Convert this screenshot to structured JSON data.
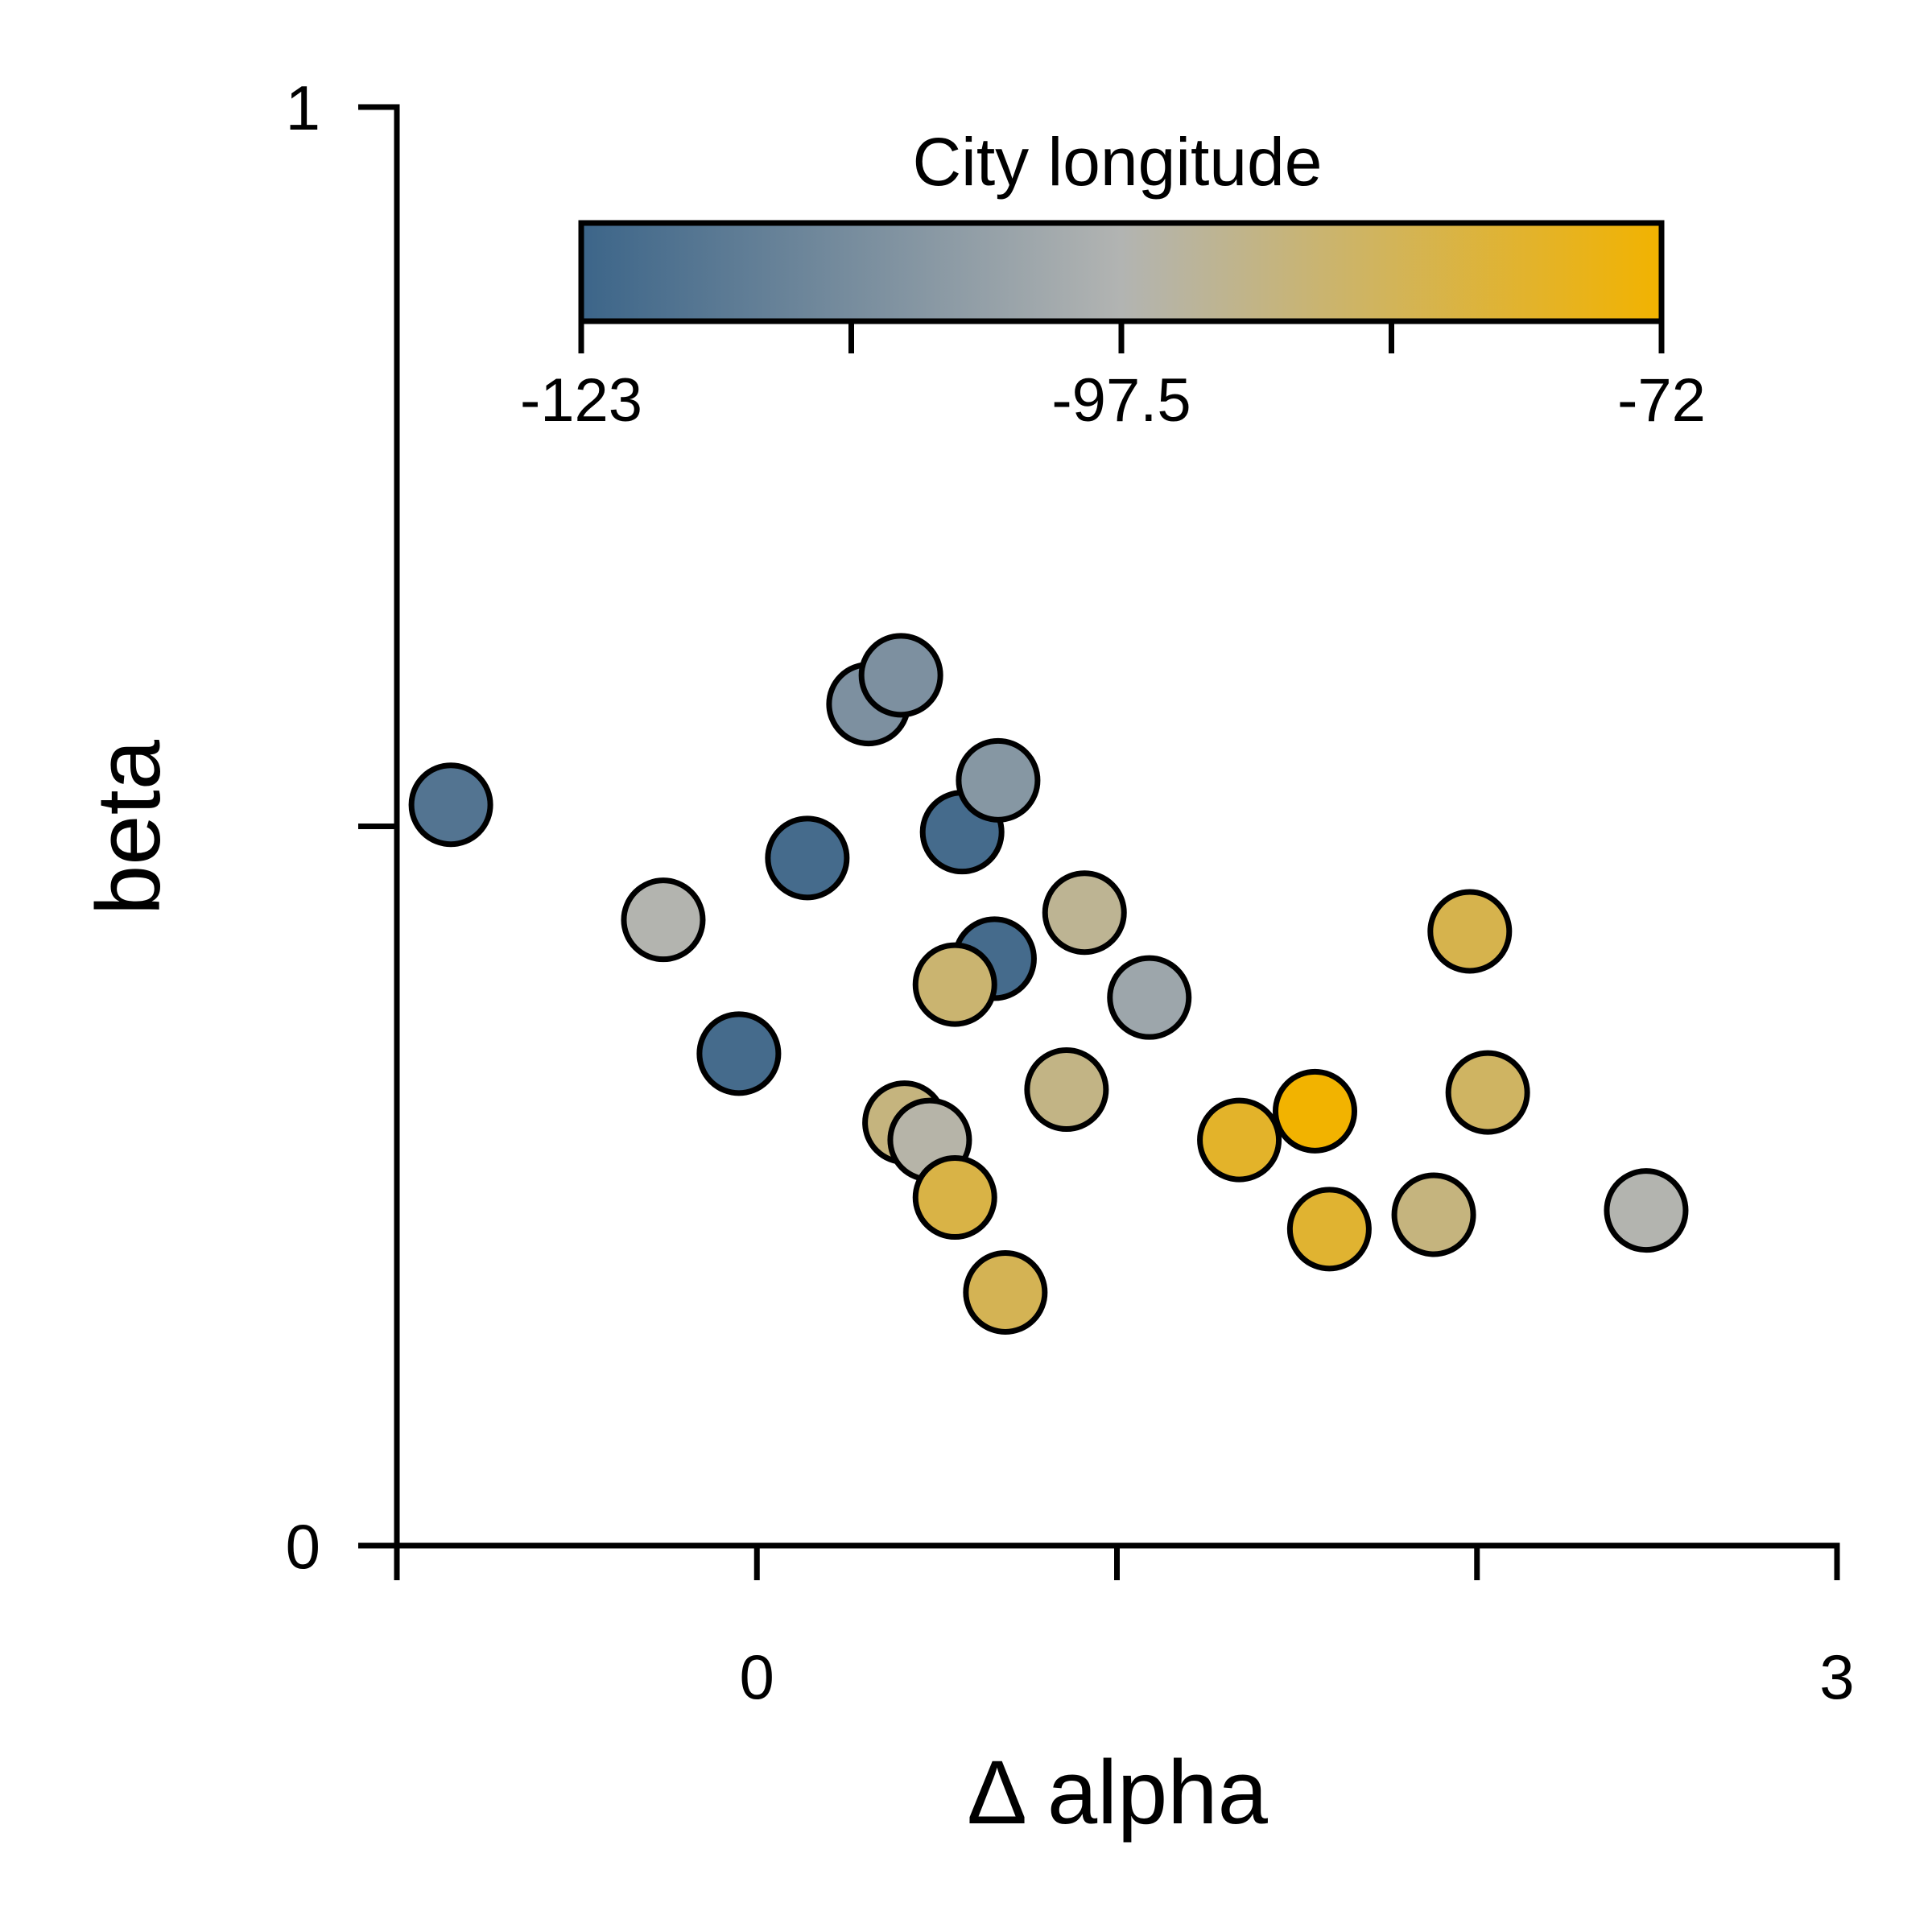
{
  "chart_data": {
    "type": "scatter",
    "xlabel": "Δ alpha",
    "ylabel": "beta",
    "xlim": [
      -1,
      3
    ],
    "ylim": [
      0,
      1
    ],
    "x_ticks": [
      -1,
      0,
      1,
      2,
      3
    ],
    "x_tick_labels": [
      "",
      "0",
      "",
      "",
      "3"
    ],
    "y_ticks": [
      0,
      0.5,
      1
    ],
    "y_tick_labels": [
      "0",
      "",
      "1"
    ],
    "grid": false,
    "colorbar": {
      "title": "City longitude",
      "min": -123,
      "max": -72,
      "ticks": [
        -123,
        -110.25,
        -97.5,
        -84.75,
        -72
      ],
      "tick_labels": [
        "-123",
        "",
        "-97.5",
        "",
        "-72"
      ],
      "colors": [
        "#3c6589",
        "#b2b4b2",
        "#f2b300"
      ],
      "placement": "top"
    },
    "series": [
      {
        "x": [
          -0.85,
          -0.26,
          -0.05,
          0.14,
          0.31,
          0.4,
          0.57,
          0.66,
          0.67,
          0.91,
          1.09,
          0.86,
          0.55,
          0.41,
          0.48,
          0.55,
          0.69,
          1.34,
          1.55,
          1.59,
          1.88,
          1.98,
          2.03,
          2.47
        ],
        "y": [
          0.515,
          0.435,
          0.342,
          0.478,
          0.585,
          0.605,
          0.496,
          0.408,
          0.532,
          0.44,
          0.381,
          0.317,
          0.39,
          0.294,
          0.282,
          0.242,
          0.176,
          0.282,
          0.302,
          0.22,
          0.23,
          0.427,
          0.315,
          0.233
        ],
        "color_value": [
          -118,
          -97,
          -121,
          -121,
          -109,
          -109,
          -121,
          -121,
          -107,
          -93,
          -102,
          -91,
          -88,
          -90,
          -96,
          -82,
          -84,
          -78,
          -72,
          -79,
          -90,
          -83,
          -86,
          -97
        ]
      }
    ]
  }
}
